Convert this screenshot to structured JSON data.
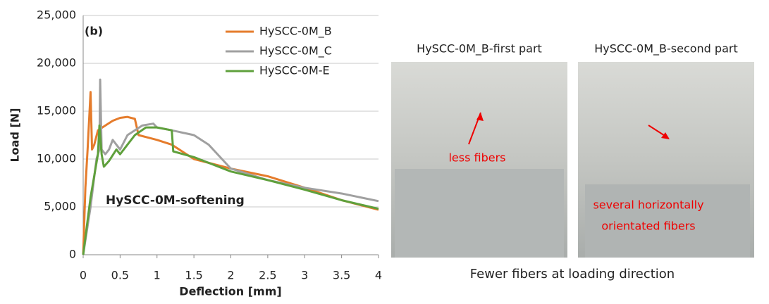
{
  "chart_data": {
    "type": "line",
    "annotations": [
      "(b)",
      "HySCC-0M-softening"
    ],
    "xlabel": "Deflection [mm]",
    "ylabel": "Load [N]",
    "xlim": [
      0,
      4
    ],
    "xticks": [
      0,
      0.5,
      1,
      1.5,
      2,
      2.5,
      3,
      3.5,
      4
    ],
    "ylim": [
      0,
      25000
    ],
    "yticks": [
      0,
      {
        "value": 5000,
        "label": "5,000"
      },
      {
        "value": 10000,
        "label": "10,000"
      },
      {
        "value": 15000,
        "label": "15,000"
      },
      {
        "value": 20000,
        "label": "20,000"
      },
      {
        "value": 25000,
        "label": "25,000"
      }
    ],
    "grid": true,
    "legend": "top-right",
    "series": [
      {
        "name": "HySCC-0M_B",
        "color": "#e57c2c",
        "x": [
          0,
          0.03,
          0.06,
          0.1,
          0.12,
          0.15,
          0.2,
          0.3,
          0.4,
          0.5,
          0.6,
          0.7,
          0.75,
          0.9,
          1.0,
          1.2,
          1.5,
          2,
          2.5,
          3,
          3.5,
          4
        ],
        "values": [
          0,
          7000,
          11000,
          17000,
          11000,
          11500,
          13000,
          13500,
          14000,
          14300,
          14400,
          14200,
          12500,
          12200,
          12000,
          11500,
          10000,
          9000,
          8200,
          7000,
          5700,
          4700
        ]
      },
      {
        "name": "HySCC-0M_C",
        "color": "#a0a0a0",
        "x": [
          0,
          0.1,
          0.18,
          0.22,
          0.23,
          0.25,
          0.3,
          0.35,
          0.4,
          0.5,
          0.6,
          0.8,
          0.95,
          1.0,
          1.2,
          1.5,
          1.7,
          2,
          2.5,
          3,
          3.5,
          4
        ],
        "values": [
          0,
          5000,
          10000,
          11000,
          18300,
          11000,
          10500,
          11000,
          12000,
          11000,
          12500,
          13500,
          13700,
          13300,
          13000,
          12500,
          11500,
          9000,
          7800,
          7000,
          6400,
          5600
        ]
      },
      {
        "name": "HySCC-0M-E",
        "color": "#5fa03c",
        "x": [
          0,
          0.1,
          0.2,
          0.22,
          0.25,
          0.28,
          0.35,
          0.45,
          0.5,
          0.6,
          0.7,
          0.85,
          1,
          1.2,
          1.22,
          1.5,
          2,
          2.5,
          3,
          3.5,
          4
        ],
        "values": [
          0,
          6000,
          10500,
          13500,
          10500,
          9200,
          9800,
          11000,
          10500,
          11500,
          12500,
          13300,
          13300,
          13000,
          10800,
          10200,
          8700,
          7800,
          6800,
          5700,
          4800
        ]
      }
    ]
  },
  "photos": {
    "captions": [
      "HySCC-0M_B-first part",
      "HySCC-0M_B-second part"
    ],
    "labels": [
      "less fibers",
      "several horizontally",
      "orientated fibers"
    ],
    "footer": "Fewer fibers at loading direction"
  }
}
